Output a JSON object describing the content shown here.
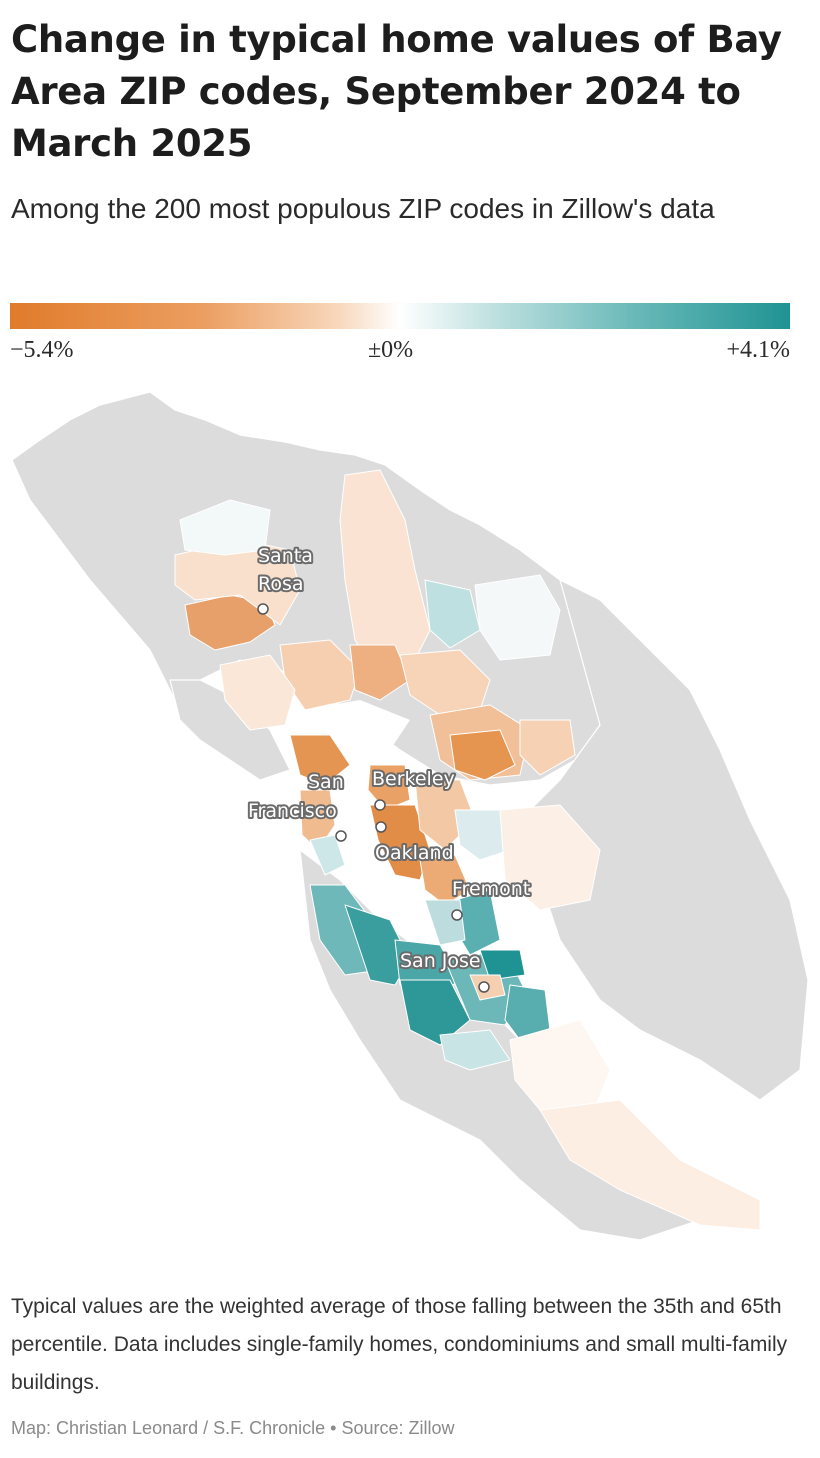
{
  "header": {
    "title": "Change in typical home values of Bay Area ZIP codes, September 2024 to March 2025",
    "subtitle": "Among the 200 most populous ZIP codes in Zillow's data"
  },
  "legend": {
    "min_label": "−5.4%",
    "mid_label": "±0%",
    "max_label": "+4.1%",
    "min_value": -5.4,
    "max_value": 4.1,
    "colors": {
      "negative": "#e07b2a",
      "neutral": "#ffffff",
      "positive": "#1f9393",
      "no_data": "#dcdcdc"
    }
  },
  "map": {
    "cities": [
      {
        "name": "Santa Rosa",
        "lines": [
          "Santa",
          "Rosa"
        ]
      },
      {
        "name": "Berkeley",
        "lines": [
          "Berkeley"
        ]
      },
      {
        "name": "San Francisco",
        "lines": [
          "San",
          "Francisco"
        ]
      },
      {
        "name": "Oakland",
        "lines": [
          "Oakland"
        ]
      },
      {
        "name": "Fremont",
        "lines": [
          "Fremont"
        ]
      },
      {
        "name": "San Jose",
        "lines": [
          "San Jose"
        ]
      }
    ]
  },
  "footer": {
    "note": "Typical values are the weighted average of those falling between the 35th and 65th percentile. Data includes single-family homes, condominiums and small multi-family buildings.",
    "credit": "Map: Christian Leonard / S.F. Chronicle • Source: Zillow"
  }
}
